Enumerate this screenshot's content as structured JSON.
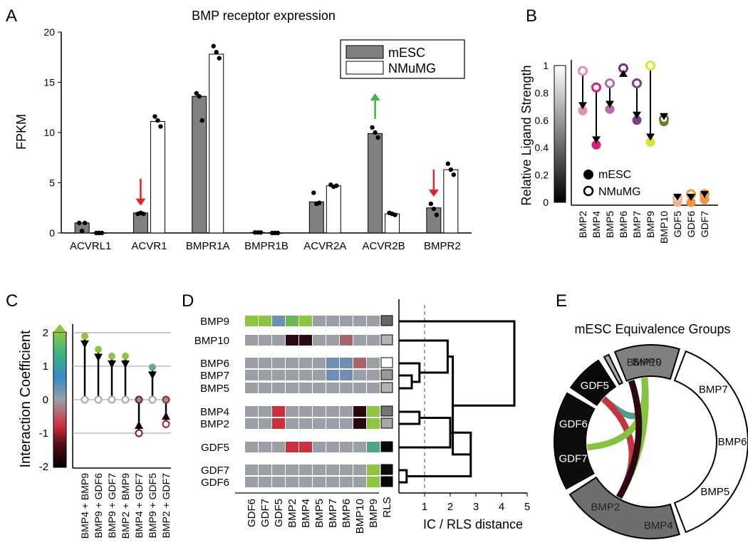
{
  "figure": {
    "panel_labels": [
      "A",
      "B",
      "C",
      "D",
      "E"
    ]
  },
  "chart_data": [
    {
      "panel": "A",
      "type": "bar",
      "title": "BMP receptor expression",
      "xlabel": "",
      "ylabel": "FPKM",
      "ylim": [
        0,
        20
      ],
      "yticks": [
        "0",
        "5",
        "10",
        "15",
        "20"
      ],
      "categories": [
        "ACVRL1",
        "ACVR1",
        "BMPR1A",
        "BMPR1B",
        "ACVR2A",
        "ACVR2B",
        "BMPR2"
      ],
      "series": [
        {
          "name": "mESC",
          "values": [
            1.0,
            2.0,
            13.6,
            0.05,
            3.1,
            9.9,
            2.5
          ],
          "color": "#808080",
          "points": [
            [
              1.0,
              0.2,
              1.0
            ],
            [
              1.9,
              2.0,
              1.9
            ],
            [
              13.9,
              13.6,
              11.2
            ],
            [
              0.05,
              0.05,
              0.05
            ],
            [
              4.0,
              2.9,
              3.0
            ],
            [
              10.5,
              10.0,
              9.5
            ],
            [
              2.9,
              2.4,
              1.8
            ]
          ]
        },
        {
          "name": "NMuMG",
          "values": [
            0.0,
            11.1,
            17.8,
            0.0,
            4.7,
            1.9,
            6.3
          ],
          "color": "#ffffff",
          "points": [
            [
              0.0,
              0.0,
              0.0
            ],
            [
              11.6,
              11.2,
              10.6
            ],
            [
              18.6,
              18.0,
              17.4
            ],
            [
              0.0,
              0.0,
              0.0
            ],
            [
              4.8,
              4.6,
              4.7
            ],
            [
              2.0,
              1.9,
              1.8
            ],
            [
              6.9,
              6.3,
              5.8
            ]
          ]
        }
      ],
      "legend": {
        "position": "top-right",
        "entries": [
          "mESC",
          "NMuMG"
        ]
      },
      "annotations": [
        {
          "category": "ACVR1",
          "direction": "down",
          "color": "#e8202a"
        },
        {
          "category": "ACVR2B",
          "direction": "up",
          "color": "#3cb44a"
        },
        {
          "category": "BMPR2",
          "direction": "down",
          "color": "#e8202a"
        }
      ]
    },
    {
      "panel": "B",
      "type": "scatter",
      "ylabel": "Relative Ligand Strength",
      "ylim": [
        0,
        1
      ],
      "yticks": [
        "0",
        "0.2",
        "0.4",
        "0.6",
        "0.8",
        "1"
      ],
      "categories": [
        "BMP2",
        "BMP4",
        "BMP5",
        "BMP6",
        "BMP7",
        "BMP9",
        "BMP10",
        "GDF5",
        "GDF6",
        "GDF7"
      ],
      "series": [
        {
          "name": "NMuMG",
          "values": [
            0.96,
            0.84,
            0.87,
            0.98,
            0.87,
            1.0,
            0.61,
            0.03,
            0.06,
            0.06
          ],
          "colors": [
            "#e68fb4",
            "#d4217f",
            "#b46dac",
            "#7a2a87",
            "#7a3f89",
            "#dee233",
            "#6e7d31",
            "#f2b28f",
            "#f19340",
            "#f19340"
          ]
        },
        {
          "name": "mESC",
          "values": [
            0.67,
            0.42,
            0.68,
            0.98,
            0.6,
            0.44,
            0.59,
            0.0,
            0.0,
            0.02
          ],
          "colors": [
            "#e68fb4",
            "#d4217f",
            "#b46dac",
            "#7a2a87",
            "#7a3f89",
            "#dee233",
            "#6e7d31",
            "#f2b28f",
            "#f19340",
            "#f19340"
          ]
        }
      ],
      "legend": {
        "position": "bottom-center",
        "entries": [
          "mESC",
          "NMuMG"
        ]
      },
      "colorbar": {
        "range": [
          0,
          1
        ],
        "ticks": [
          "0",
          "0.2",
          "0.4",
          "0.6",
          "0.8",
          "1"
        ],
        "colormap": "gray"
      }
    },
    {
      "panel": "C",
      "type": "scatter",
      "ylabel": "Interaction Coefficient",
      "ylim": [
        -2,
        2
      ],
      "yticks": [
        "-2",
        "-1",
        "0",
        "1",
        "2"
      ],
      "categories": [
        "BMP4 + BMP9",
        "BMP9 + GDF6",
        "BMP9 + GDF7",
        "BMP2 + BMP9",
        "BMP4 + GDF7",
        "BMP9 + GDF5",
        "BMP2 + GDF7"
      ],
      "series": [
        {
          "name": "NMuMG",
          "values": [
            0,
            0,
            0,
            0,
            0,
            0,
            0
          ],
          "colors": [
            "#a0a8b0",
            "#a0a8b0",
            "#a0a8b0",
            "#a0a8b0",
            "#7a1a20",
            "#a0a8b0",
            "#b12028"
          ]
        },
        {
          "name": "mESC",
          "values": [
            1.9,
            1.5,
            1.3,
            1.3,
            -1.0,
            0.97,
            -0.73
          ],
          "colors": [
            "#8dc540",
            "#8dc540",
            "#8dc540",
            "#8dc540",
            "#8a94a0",
            "#5fab8a",
            "#8a94a0"
          ]
        }
      ]
    },
    {
      "panel": "D",
      "type": "heatmap",
      "row_labels": [
        "BMP9",
        "BMP10",
        "BMP6",
        "BMP7",
        "BMP5",
        "BMP4",
        "BMP2",
        "GDF5",
        "GDF7",
        "GDF6"
      ],
      "col_labels": [
        "GDF6",
        "GDF7",
        "GDF5",
        "BMP2",
        "BMP4",
        "BMP5",
        "BMP7",
        "BMP6",
        "BMP10",
        "BMP9"
      ],
      "rls_label": "RLS",
      "xlabel": "IC / RLS distance",
      "distance_ticks": [
        "1",
        "2",
        "3",
        "4",
        "5"
      ],
      "distance_threshold": 1,
      "values": [
        [
          1.4,
          1.3,
          0.8,
          1.2,
          1.4,
          0,
          0,
          0,
          0,
          0
        ],
        [
          0,
          0,
          0,
          -2,
          -2,
          0,
          0,
          -1,
          0,
          0
        ],
        [
          0,
          0,
          0,
          0,
          0,
          0,
          0.7,
          0.7,
          -1,
          0
        ],
        [
          0,
          0,
          0,
          0,
          0,
          0,
          0.7,
          0.7,
          0,
          0
        ],
        [
          0,
          0,
          0,
          0,
          0,
          0,
          0,
          0,
          0,
          0
        ],
        [
          0,
          0,
          -1.1,
          0,
          0,
          0,
          0,
          0,
          -2,
          1.4
        ],
        [
          0,
          0,
          -1.1,
          0,
          0,
          0,
          0,
          0,
          -2,
          1.4
        ],
        [
          0,
          0,
          0,
          -1.1,
          -1.1,
          0,
          0,
          0,
          0,
          0.9
        ],
        [
          0,
          0,
          0,
          0,
          0,
          0,
          0,
          0,
          0,
          1.4
        ],
        [
          0,
          0,
          0,
          0,
          0,
          0,
          0,
          0,
          0,
          1.4
        ]
      ],
      "rls": [
        0.4,
        0.7,
        1.0,
        0.6,
        0.7,
        0.45,
        0.65,
        0.03,
        0.05,
        0.03
      ],
      "dendrogram_merge_heights": [
        0.5,
        0.8,
        1.2,
        0.8,
        0.3,
        1.9,
        2.0,
        2.8,
        4.5
      ]
    },
    {
      "panel": "E",
      "type": "chord",
      "title": "mESC Equivalence Groups",
      "groups": [
        {
          "name": "BMP9",
          "members": [
            "BMP9"
          ],
          "fill": "#808080",
          "text": "#222222"
        },
        {
          "name": "BMP7-6-5",
          "members": [
            "BMP7",
            "BMP6",
            "BMP5"
          ],
          "fill": "#ffffff",
          "text": "#000000"
        },
        {
          "name": "BMP4-2",
          "members": [
            "BMP4",
            "BMP2"
          ],
          "fill": "#6e6e6e",
          "text": "#222222"
        },
        {
          "name": "GDF7-6",
          "members": [
            "GDF7",
            "GDF6"
          ],
          "fill": "#0d0d0d",
          "text": "#ffffff"
        },
        {
          "name": "GDF5",
          "members": [
            "GDF5"
          ],
          "fill": "#0a0a0a",
          "text": "#ffffff"
        },
        {
          "name": "BMP10",
          "members": [
            "BMP10"
          ],
          "fill": "#a8a8a8",
          "text": "#222222"
        }
      ],
      "links": [
        {
          "from": "GDF5",
          "to": "BMP9",
          "color": "#4f9e86"
        },
        {
          "from": "GDF5",
          "to": "BMP2",
          "color": "#c33641"
        },
        {
          "from": "GDF7",
          "to": "BMP9",
          "color": "#86c340"
        },
        {
          "from": "BMP2",
          "to": "BMP9",
          "color": "#86c340"
        },
        {
          "from": "BMP10",
          "to": "BMP2",
          "color": "#2a0a10"
        }
      ]
    }
  ]
}
